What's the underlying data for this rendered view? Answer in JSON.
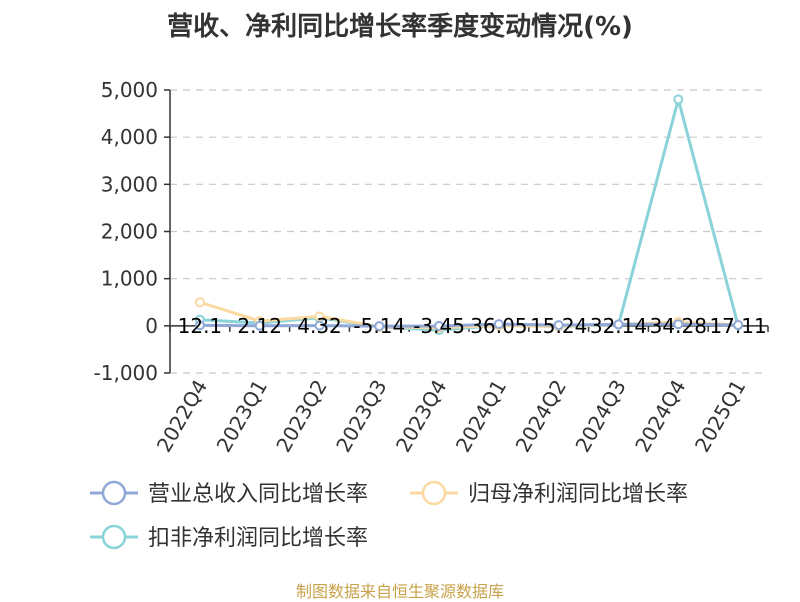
{
  "title": "营收、净利同比增长率季度变动情况(%)",
  "source": "制图数据来自恒生聚源数据库",
  "chart_data": {
    "type": "line",
    "categories": [
      "2022Q4",
      "2023Q1",
      "2023Q2",
      "2023Q3",
      "2023Q4",
      "2024Q1",
      "2024Q2",
      "2024Q3",
      "2024Q4",
      "2025Q1"
    ],
    "y_ticks": [
      "5,000",
      "4,000",
      "3,000",
      "2,000",
      "1,000",
      "0",
      "-1,000"
    ],
    "ylim": [
      -1000,
      5000
    ],
    "grid": true,
    "legend_position": "bottom",
    "series": [
      {
        "name": "营业总收入同比增长率",
        "color": "#8fa8d8",
        "values": [
          12.1,
          2.12,
          4.32,
          -5.14,
          -3.45,
          36.05,
          15.24,
          32.14,
          34.28,
          17.11
        ],
        "labels": [
          "12.1",
          "2.12",
          "4.32",
          "-5.14",
          "-3.45",
          "36.05",
          "15.24",
          "32.14",
          "34.28",
          "17.11"
        ]
      },
      {
        "name": "归母净利润同比增长率",
        "color": "#fbd9a0",
        "values": [
          500,
          100,
          200,
          -20,
          -40,
          5,
          -10,
          30,
          80,
          20
        ]
      },
      {
        "name": "扣非净利润同比增长率",
        "color": "#8ad3d8",
        "values": [
          130,
          60,
          170,
          -20,
          -90,
          10,
          -15,
          25,
          4800,
          10
        ]
      }
    ]
  }
}
